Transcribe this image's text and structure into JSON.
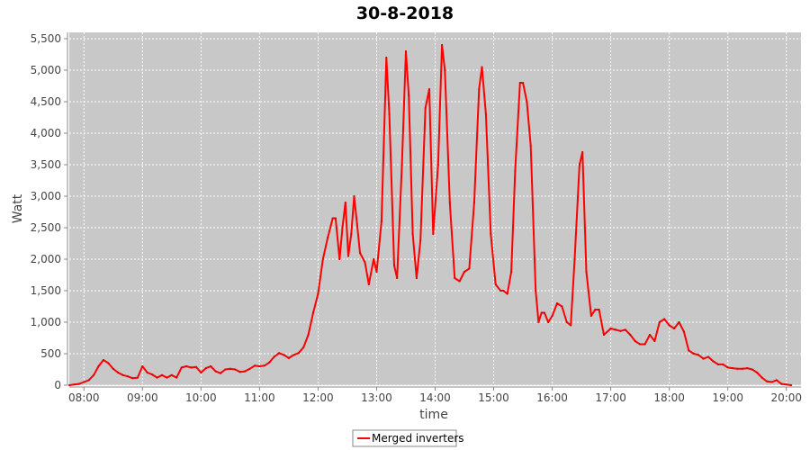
{
  "chart_data": {
    "type": "line",
    "title": "30-8-2018",
    "xlabel": "time",
    "ylabel": "Watt",
    "x_ticks": [
      "08:00",
      "09:00",
      "10:00",
      "11:00",
      "12:00",
      "13:00",
      "14:00",
      "15:00",
      "16:00",
      "17:00",
      "18:00",
      "19:00",
      "20:00"
    ],
    "y_ticks": [
      "0",
      "500",
      "1,000",
      "1,500",
      "2,000",
      "2,500",
      "3,000",
      "3,500",
      "4,000",
      "4,500",
      "5,000",
      "5,500"
    ],
    "xlim": [
      "07:45",
      "20:15"
    ],
    "ylim": [
      0,
      5600
    ],
    "grid": true,
    "legend_position": "bottom-center",
    "colors": {
      "plot_bg": "#c8c8c8",
      "grid": "#ffffff",
      "series": "#ff0000"
    },
    "series": [
      {
        "name": "Merged inverters",
        "points": [
          [
            "07:45",
            0
          ],
          [
            "07:50",
            10
          ],
          [
            "07:55",
            20
          ],
          [
            "08:00",
            50
          ],
          [
            "08:05",
            80
          ],
          [
            "08:10",
            160
          ],
          [
            "08:15",
            300
          ],
          [
            "08:20",
            400
          ],
          [
            "08:25",
            350
          ],
          [
            "08:30",
            260
          ],
          [
            "08:35",
            200
          ],
          [
            "08:40",
            160
          ],
          [
            "08:45",
            140
          ],
          [
            "08:50",
            110
          ],
          [
            "08:55",
            120
          ],
          [
            "09:00",
            300
          ],
          [
            "09:05",
            200
          ],
          [
            "09:10",
            170
          ],
          [
            "09:15",
            120
          ],
          [
            "09:20",
            160
          ],
          [
            "09:25",
            120
          ],
          [
            "09:30",
            160
          ],
          [
            "09:35",
            120
          ],
          [
            "09:40",
            280
          ],
          [
            "09:45",
            300
          ],
          [
            "09:50",
            280
          ],
          [
            "09:55",
            290
          ],
          [
            "10:00",
            200
          ],
          [
            "10:05",
            270
          ],
          [
            "10:10",
            300
          ],
          [
            "10:15",
            220
          ],
          [
            "10:20",
            190
          ],
          [
            "10:25",
            250
          ],
          [
            "10:30",
            260
          ],
          [
            "10:35",
            250
          ],
          [
            "10:40",
            210
          ],
          [
            "10:45",
            220
          ],
          [
            "10:50",
            260
          ],
          [
            "10:55",
            310
          ],
          [
            "11:00",
            300
          ],
          [
            "11:05",
            310
          ],
          [
            "11:10",
            360
          ],
          [
            "11:15",
            450
          ],
          [
            "11:20",
            510
          ],
          [
            "11:25",
            480
          ],
          [
            "11:30",
            430
          ],
          [
            "11:35",
            480
          ],
          [
            "11:40",
            510
          ],
          [
            "11:45",
            600
          ],
          [
            "11:50",
            800
          ],
          [
            "11:55",
            1150
          ],
          [
            "12:00",
            1450
          ],
          [
            "12:05",
            2000
          ],
          [
            "12:10",
            2350
          ],
          [
            "12:15",
            2650
          ],
          [
            "12:18",
            2650
          ],
          [
            "12:22",
            2000
          ],
          [
            "12:25",
            2500
          ],
          [
            "12:28",
            2900
          ],
          [
            "12:31",
            2050
          ],
          [
            "12:34",
            2400
          ],
          [
            "12:37",
            3000
          ],
          [
            "12:40",
            2550
          ],
          [
            "12:43",
            2100
          ],
          [
            "12:48",
            1950
          ],
          [
            "12:52",
            1600
          ],
          [
            "12:57",
            2000
          ],
          [
            "13:00",
            1800
          ],
          [
            "13:05",
            2600
          ],
          [
            "13:10",
            5200
          ],
          [
            "13:13",
            4300
          ],
          [
            "13:18",
            1900
          ],
          [
            "13:21",
            1700
          ],
          [
            "13:26",
            3500
          ],
          [
            "13:30",
            5300
          ],
          [
            "13:33",
            4600
          ],
          [
            "13:37",
            2400
          ],
          [
            "13:41",
            1700
          ],
          [
            "13:45",
            2300
          ],
          [
            "13:50",
            4400
          ],
          [
            "13:54",
            4700
          ],
          [
            "13:58",
            2400
          ],
          [
            "14:03",
            3500
          ],
          [
            "14:07",
            5400
          ],
          [
            "14:10",
            5000
          ],
          [
            "14:15",
            2900
          ],
          [
            "14:20",
            1700
          ],
          [
            "14:25",
            1650
          ],
          [
            "14:30",
            1800
          ],
          [
            "14:35",
            1850
          ],
          [
            "14:40",
            2900
          ],
          [
            "14:45",
            4700
          ],
          [
            "14:48",
            5050
          ],
          [
            "14:52",
            4300
          ],
          [
            "14:57",
            2400
          ],
          [
            "15:02",
            1600
          ],
          [
            "15:07",
            1500
          ],
          [
            "15:10",
            1500
          ],
          [
            "15:14",
            1450
          ],
          [
            "15:18",
            1800
          ],
          [
            "15:22",
            3400
          ],
          [
            "15:27",
            4800
          ],
          [
            "15:30",
            4800
          ],
          [
            "15:34",
            4500
          ],
          [
            "15:38",
            3800
          ],
          [
            "15:43",
            1500
          ],
          [
            "15:46",
            1000
          ],
          [
            "15:49",
            1150
          ],
          [
            "15:52",
            1150
          ],
          [
            "15:56",
            1000
          ],
          [
            "16:00",
            1100
          ],
          [
            "16:05",
            1300
          ],
          [
            "16:10",
            1250
          ],
          [
            "16:15",
            1000
          ],
          [
            "16:19",
            950
          ],
          [
            "16:23",
            2000
          ],
          [
            "16:28",
            3500
          ],
          [
            "16:31",
            3700
          ],
          [
            "16:35",
            1800
          ],
          [
            "16:40",
            1100
          ],
          [
            "16:44",
            1200
          ],
          [
            "16:48",
            1200
          ],
          [
            "16:53",
            800
          ],
          [
            "17:00",
            900
          ],
          [
            "17:05",
            880
          ],
          [
            "17:10",
            860
          ],
          [
            "17:15",
            880
          ],
          [
            "17:20",
            800
          ],
          [
            "17:25",
            700
          ],
          [
            "17:30",
            650
          ],
          [
            "17:35",
            650
          ],
          [
            "17:40",
            800
          ],
          [
            "17:45",
            700
          ],
          [
            "17:50",
            1000
          ],
          [
            "17:55",
            1050
          ],
          [
            "18:00",
            950
          ],
          [
            "18:05",
            900
          ],
          [
            "18:10",
            1000
          ],
          [
            "18:15",
            850
          ],
          [
            "18:20",
            550
          ],
          [
            "18:25",
            500
          ],
          [
            "18:30",
            480
          ],
          [
            "18:35",
            420
          ],
          [
            "18:40",
            450
          ],
          [
            "18:45",
            380
          ],
          [
            "18:50",
            330
          ],
          [
            "18:55",
            330
          ],
          [
            "19:00",
            280
          ],
          [
            "19:05",
            270
          ],
          [
            "19:10",
            260
          ],
          [
            "19:15",
            260
          ],
          [
            "19:20",
            270
          ],
          [
            "19:25",
            250
          ],
          [
            "19:30",
            200
          ],
          [
            "19:35",
            120
          ],
          [
            "19:40",
            60
          ],
          [
            "19:45",
            50
          ],
          [
            "19:50",
            80
          ],
          [
            "19:55",
            20
          ],
          [
            "20:00",
            10
          ],
          [
            "20:05",
            0
          ]
        ]
      }
    ]
  }
}
